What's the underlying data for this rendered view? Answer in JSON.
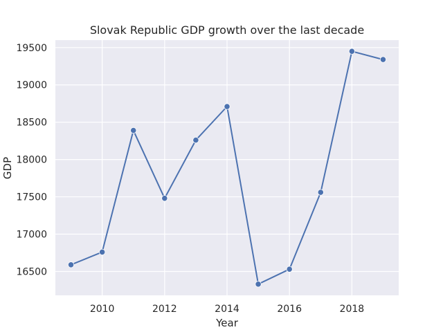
{
  "chart_data": {
    "type": "line",
    "title": "Slovak Republic GDP growth over the last decade",
    "xlabel": "Year",
    "ylabel": "GDP",
    "x": [
      2009,
      2010,
      2011,
      2012,
      2013,
      2014,
      2015,
      2016,
      2017,
      2018,
      2019
    ],
    "series": [
      {
        "values": [
          16590,
          16760,
          18390,
          17480,
          18260,
          18710,
          16330,
          16530,
          17560,
          19450,
          19340
        ]
      }
    ],
    "xticks": [
      2010,
      2012,
      2014,
      2016,
      2018
    ],
    "yticks": [
      16500,
      17000,
      17500,
      18000,
      18500,
      19000,
      19500
    ],
    "xlim": [
      2008.5,
      2019.5
    ],
    "ylim": [
      16180,
      19600
    ],
    "grid": true,
    "colors": {
      "line": "#4c72b0",
      "background": "#eaeaf2",
      "grid": "#ffffff"
    }
  }
}
